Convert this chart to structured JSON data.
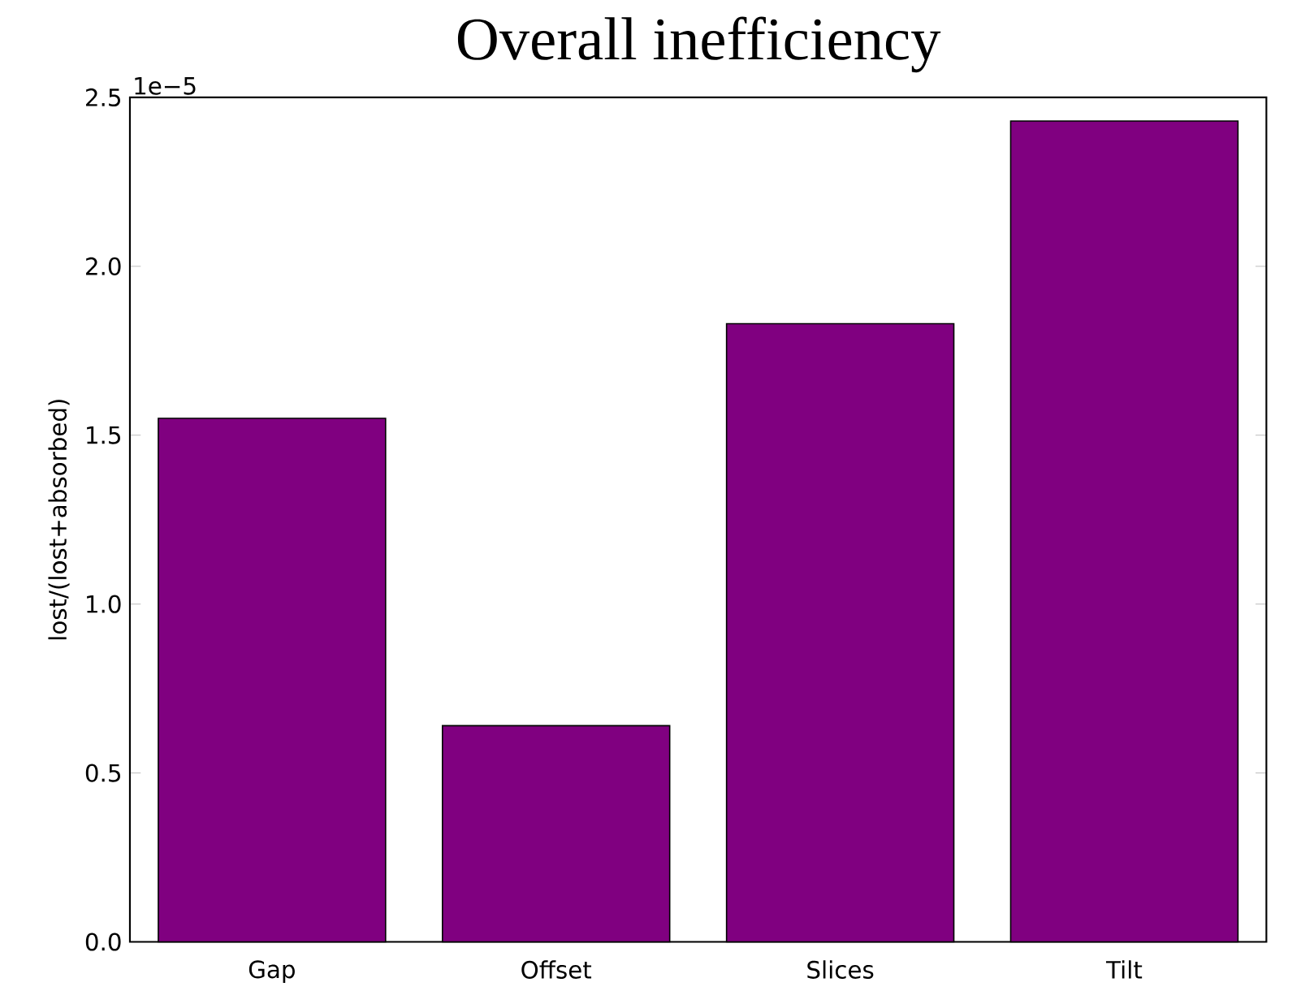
{
  "chart_data": {
    "type": "bar",
    "title": "Overall inefficiency",
    "ylabel": "lost/(lost+absorbed)",
    "categories": [
      "Gap",
      "Offset",
      "Slices",
      "Tilt"
    ],
    "values": [
      1.55,
      0.64,
      1.83,
      2.43
    ],
    "color": "#800080",
    "ylim": [
      0,
      2.5
    ],
    "yticks": [
      {
        "value": 0,
        "label": "0.0"
      },
      0.5,
      {
        "value": 1,
        "label": "1.0"
      },
      1.5,
      {
        "value": 2,
        "label": "2.0"
      },
      2.5
    ],
    "annotations": [
      "1e−5"
    ],
    "grid": false
  }
}
